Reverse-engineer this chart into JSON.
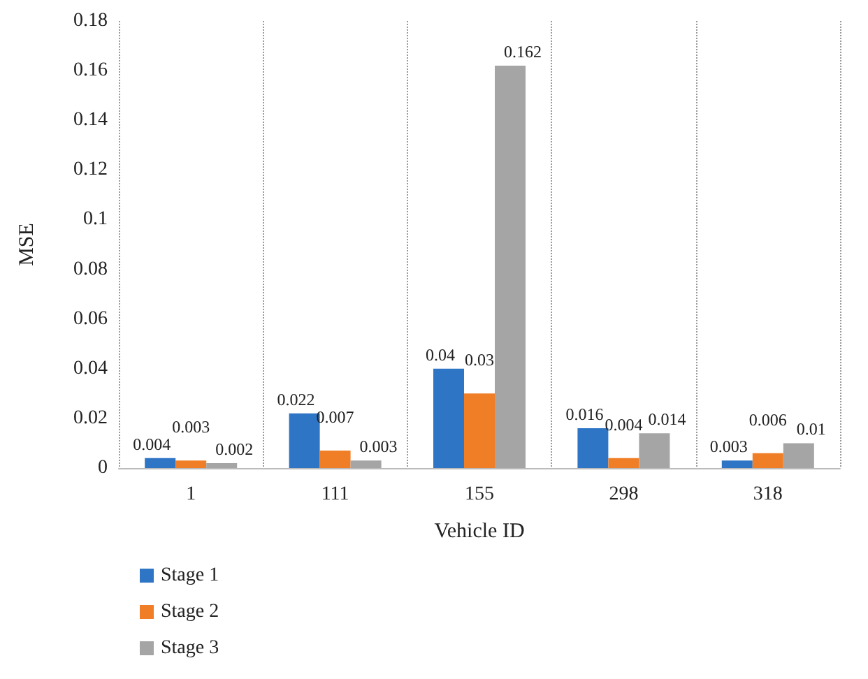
{
  "chart_data": {
    "type": "bar",
    "xlabel": "Vehicle ID",
    "ylabel": "MSE",
    "categories": [
      "1",
      "111",
      "155",
      "298",
      "318"
    ],
    "series": [
      {
        "name": "Stage 1",
        "color": "#2e75c6",
        "values": [
          0.004,
          0.022,
          0.04,
          0.016,
          0.003
        ]
      },
      {
        "name": "Stage 2",
        "color": "#f07e26",
        "values": [
          0.003,
          0.007,
          0.03,
          0.004,
          0.006
        ]
      },
      {
        "name": "Stage 3",
        "color": "#a5a5a5",
        "values": [
          0.002,
          0.003,
          0.162,
          0.014,
          0.01
        ]
      }
    ],
    "ylim": [
      0,
      0.18
    ],
    "yticks": [
      0,
      0.02,
      0.04,
      0.06,
      0.08,
      0.1,
      0.12,
      0.14,
      0.16,
      0.18
    ],
    "grid": "x",
    "legend": "bottom left",
    "data_labels": true
  }
}
